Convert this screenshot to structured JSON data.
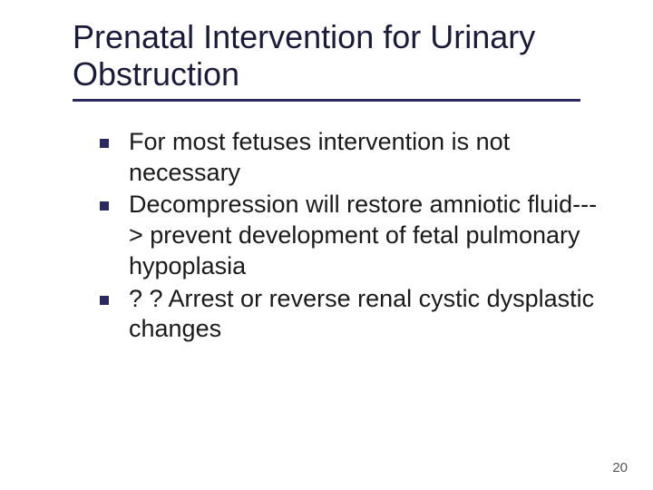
{
  "slide": {
    "title": "Prenatal Intervention for Urinary Obstruction",
    "title_color": "#1a1a3a",
    "title_fontsize": 36,
    "underline_color": "#2a2a60",
    "underline_width": 560,
    "bullets": [
      {
        "text": "For most fetuses intervention is not necessary"
      },
      {
        "text": "Decompression will restore amniotic fluid---> prevent development of fetal pulmonary hypoplasia"
      },
      {
        "text": "? ? Arrest or reverse renal cystic dysplastic changes"
      }
    ],
    "bullet_color": "#2a2a60",
    "bullet_size": 10,
    "body_fontsize": 27,
    "body_color": "#1a1a1a",
    "page_number": "20",
    "page_number_fontsize": 15,
    "page_number_color": "#555555",
    "background_color": "#ffffff"
  }
}
